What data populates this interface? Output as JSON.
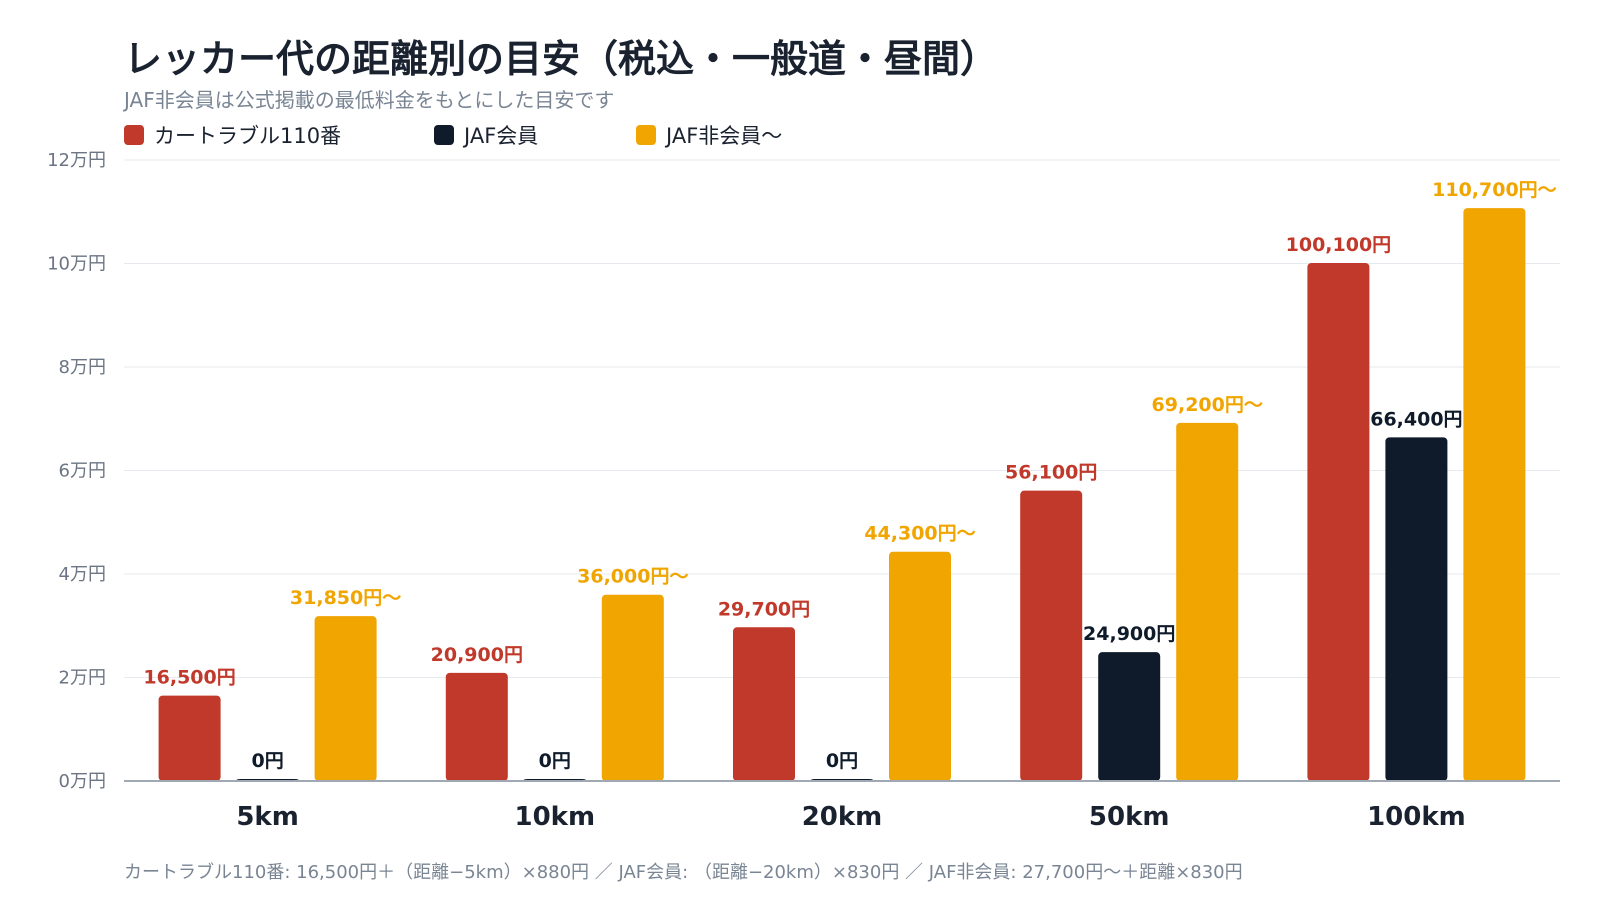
{
  "title": "レッカー代の距離別の目安（税込・一般道・昼間）",
  "subtitle": "JAF非会員は公式掲載の最低料金をもとにした目安です",
  "footnote": "カートラブル110番: 16,500円＋（距離−5km）×880円 ／ JAF会員: （距離−20km）×830円 ／ JAF非会員: 27,700円〜＋距離×830円",
  "colors": {
    "car_trouble": "#c0392b",
    "jaf_member": "#0f1b2a",
    "jaf_nonmember": "#f0a500",
    "grid": "#e6e9ee",
    "axis": "#a0a8b4",
    "tick_text": "#6b7583"
  },
  "chart_data": {
    "type": "bar",
    "title": "レッカー代の距離別の目安（税込・一般道・昼間）",
    "categories": [
      "5km",
      "10km",
      "20km",
      "50km",
      "100km"
    ],
    "ylim": [
      0,
      120000
    ],
    "yticks": [
      0,
      20000,
      40000,
      60000,
      80000,
      100000,
      120000
    ],
    "ytick_labels": [
      "0万円",
      "2万円",
      "4万円",
      "6万円",
      "8万円",
      "10万円",
      "12万円"
    ],
    "grid": true,
    "legend_position": "top-left",
    "series": [
      {
        "name": "カートラブル110番",
        "color": "#c0392b",
        "values": [
          16500,
          20900,
          29700,
          56100,
          100100
        ],
        "labels": [
          "16,500円",
          "20,900円",
          "29,700円",
          "56,100円",
          "100,100円"
        ]
      },
      {
        "name": "JAF会員",
        "color": "#0f1b2a",
        "values": [
          0,
          0,
          0,
          24900,
          66400
        ],
        "labels": [
          "0円",
          "0円",
          "0円",
          "24,900円",
          "66,400円"
        ]
      },
      {
        "name": "JAF非会員〜",
        "color": "#f0a500",
        "values": [
          31850,
          36000,
          44300,
          69200,
          110700
        ],
        "labels": [
          "31,850円〜",
          "36,000円〜",
          "44,300円〜",
          "69,200円〜",
          "110,700円〜"
        ]
      }
    ]
  }
}
